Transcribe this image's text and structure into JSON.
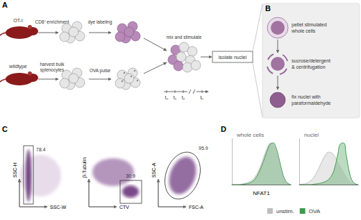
{
  "panels": {
    "A": {
      "label": "A",
      "ot1": "OT-I",
      "wildtype": "wildtype",
      "steps": {
        "cd8": "CD8⁺ enrichment",
        "dye": "dye labeling",
        "harvest": [
          "harvest bulk",
          "splenocytes"
        ],
        "ova": "OVA pulse",
        "mix": "mix and stimulate",
        "isolate": "isolate nuclei"
      },
      "timepoints": [
        "t₀",
        "t₁",
        "t₂",
        "tₙ"
      ]
    },
    "B": {
      "label": "B",
      "steps": [
        [
          "pellet stimulated",
          "whole cells"
        ],
        [
          "sucrose/detergent",
          "& centrifugation"
        ],
        [
          "fix nuclei with",
          "paraformaldehyde"
        ]
      ]
    },
    "C": {
      "label": "C",
      "plots": [
        {
          "y": "SSC-H",
          "x": "SSC-W",
          "gate": 78.4
        },
        {
          "y": "β-Tubulin",
          "x": "CTV",
          "gate": 30.9
        },
        {
          "y": "SSC-A",
          "x": "FSC-A",
          "gate": 95.9
        }
      ]
    },
    "D": {
      "label": "D"
    }
  },
  "chart_data": [
    {
      "type": "area",
      "title": "whole cells",
      "xlabel": "NFAT1",
      "tick_labels": false,
      "legend": "bottom",
      "xlim": [
        0,
        20
      ],
      "ylim": [
        0,
        1.1
      ],
      "x": [
        0,
        1,
        2,
        3,
        4,
        5,
        6,
        7,
        8,
        9,
        10,
        11,
        12,
        13,
        14,
        15,
        16,
        17,
        18,
        19,
        20
      ],
      "series": [
        {
          "name": "unstim.",
          "color": "#bdbdbd",
          "values": [
            0,
            0,
            0,
            0.01,
            0.02,
            0.04,
            0.07,
            0.12,
            0.2,
            0.33,
            0.5,
            0.7,
            0.88,
            0.99,
            0.96,
            0.78,
            0.5,
            0.24,
            0.08,
            0.02,
            0
          ]
        },
        {
          "name": "OVA",
          "color": "#3d9a4c",
          "values": [
            0,
            0,
            0,
            0,
            0.01,
            0.02,
            0.04,
            0.08,
            0.15,
            0.27,
            0.43,
            0.62,
            0.82,
            0.97,
            1.0,
            0.88,
            0.62,
            0.33,
            0.12,
            0.03,
            0
          ]
        }
      ]
    },
    {
      "type": "area",
      "title": "nuclei",
      "tick_labels": false,
      "legend": "bottom",
      "xlim": [
        0,
        20
      ],
      "ylim": [
        0,
        1.1
      ],
      "x": [
        0,
        1,
        2,
        3,
        4,
        5,
        6,
        7,
        8,
        9,
        10,
        11,
        12,
        13,
        14,
        15,
        16,
        17,
        18,
        19,
        20
      ],
      "series": [
        {
          "name": "unstim.",
          "color": "#bdbdbd",
          "values": [
            0,
            0.01,
            0.02,
            0.05,
            0.1,
            0.18,
            0.3,
            0.45,
            0.6,
            0.72,
            0.78,
            0.76,
            0.68,
            0.55,
            0.42,
            0.3,
            0.18,
            0.08,
            0.03,
            0.01,
            0
          ]
        },
        {
          "name": "OVA",
          "color": "#3d9a4c",
          "values": [
            0,
            0,
            0,
            0,
            0,
            0.01,
            0.02,
            0.03,
            0.05,
            0.08,
            0.13,
            0.22,
            0.4,
            0.7,
            0.98,
            1.0,
            0.68,
            0.3,
            0.09,
            0.02,
            0
          ]
        }
      ]
    }
  ]
}
